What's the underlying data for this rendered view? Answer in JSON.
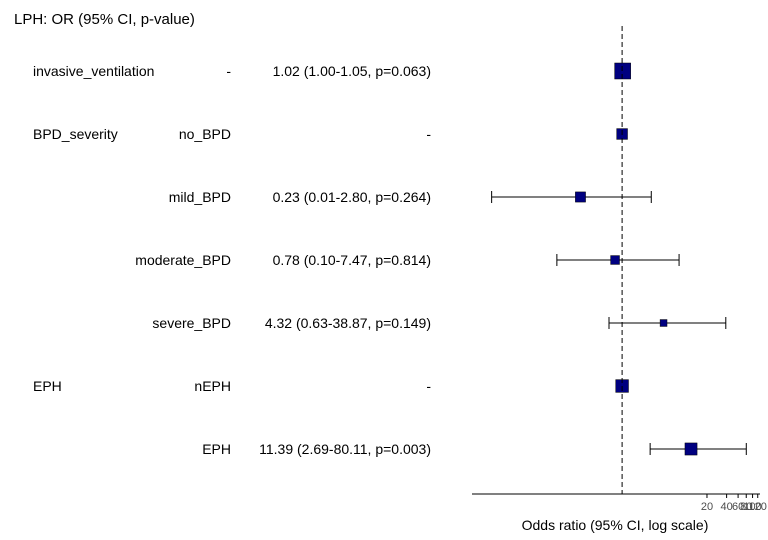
{
  "chart_data": {
    "type": "forest",
    "title": "LPH: OR (95% CI, p-value)",
    "xlabel": "Odds ratio (95% CI, log scale)",
    "x_scale": "log",
    "xlim": [
      0.005,
      130
    ],
    "reference_line": 1,
    "x_ticks": [
      {
        "value": 20,
        "label": "20"
      },
      {
        "value": 40,
        "label": "40"
      },
      {
        "value": 60,
        "label": "60"
      },
      {
        "value": 80,
        "label": "80"
      },
      {
        "value": 100,
        "label": "100"
      },
      {
        "value": 120,
        "label": "120"
      }
    ],
    "marker_color": "#000080",
    "rows": [
      {
        "variable": "invasive_ventilation",
        "level": "-",
        "text": "1.02 (1.00-1.05, p=0.063)",
        "or": 1.02,
        "lower": 1.0,
        "upper": 1.05,
        "weight": 1.0
      },
      {
        "variable": "BPD_severity",
        "level": "no_BPD",
        "text": "-",
        "or": 1,
        "lower": null,
        "upper": null,
        "weight": 0.6
      },
      {
        "variable": "",
        "level": "mild_BPD",
        "text": "0.23 (0.01-2.80, p=0.264)",
        "or": 0.23,
        "lower": 0.01,
        "upper": 2.8,
        "weight": 0.55
      },
      {
        "variable": "",
        "level": "moderate_BPD",
        "text": "0.78 (0.10-7.47, p=0.814)",
        "or": 0.78,
        "lower": 0.1,
        "upper": 7.47,
        "weight": 0.45
      },
      {
        "variable": "",
        "level": "severe_BPD",
        "text": "4.32 (0.63-38.87, p=0.149)",
        "or": 4.32,
        "lower": 0.63,
        "upper": 38.87,
        "weight": 0.3
      },
      {
        "variable": "EPH",
        "level": "nEPH",
        "text": "-",
        "or": 1,
        "lower": null,
        "upper": null,
        "weight": 0.75
      },
      {
        "variable": "",
        "level": "EPH",
        "text": "11.39 (2.69-80.11, p=0.003)",
        "or": 11.39,
        "lower": 2.69,
        "upper": 80.11,
        "weight": 0.7
      }
    ]
  }
}
